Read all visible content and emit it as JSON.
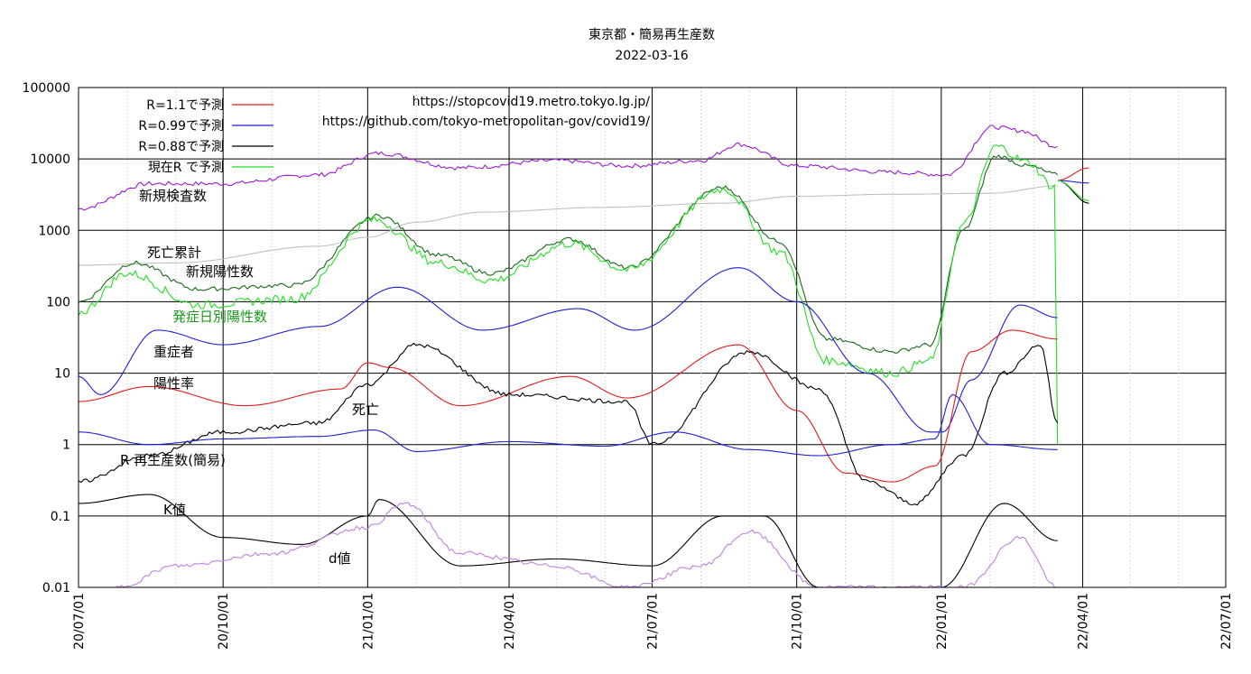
{
  "chart_data": {
    "type": "line",
    "title": "東京都・簡易再生産数",
    "subtitle": "2022-03-16",
    "y_scale": "log",
    "ylim": [
      0.01,
      100000
    ],
    "y_ticks": [
      "100000",
      "10000",
      "1000",
      "100",
      "10",
      "1",
      "0.1",
      "0.01"
    ],
    "x_ticks": [
      "20/07/01",
      "20/10/01",
      "21/01/01",
      "21/04/01",
      "21/07/01",
      "21/10/01",
      "22/01/01",
      "22/04/01",
      "22/07/01"
    ],
    "source_urls": [
      "https://stopcovid19.metro.tokyo.lg.jp/",
      "https://github.com/tokyo-metropolitan-gov/covid19/"
    ],
    "legend": [
      {
        "label": "R=1.1で予測",
        "color": "#e41a1c"
      },
      {
        "label": "R=0.99で予測",
        "color": "#1f1fd6"
      },
      {
        "label": "R=0.88で予測",
        "color": "#000000"
      },
      {
        "label": "現在R で予測",
        "color": "#22e022"
      }
    ],
    "annotations": [
      {
        "text": "新規検査数",
        "color": "#000000"
      },
      {
        "text": "死亡累計",
        "color": "#000000"
      },
      {
        "text": "新規陽性数",
        "color": "#000000"
      },
      {
        "text": "発症日別陽性数",
        "color": "#1a9a1a"
      },
      {
        "text": "重症者",
        "color": "#000000"
      },
      {
        "text": "陽性率",
        "color": "#000000"
      },
      {
        "text": "死亡",
        "color": "#000000"
      },
      {
        "text": "R 再生産数(簡易)",
        "color": "#000000"
      },
      {
        "text": "K値",
        "color": "#000000"
      },
      {
        "text": "d値",
        "color": "#000000"
      }
    ],
    "series": [
      {
        "name": "新規検査数",
        "color": "#9a1ad0",
        "x": [
          "20/07/01",
          "20/08/15",
          "20/10/01",
          "20/12/01",
          "21/01/08",
          "21/03/01",
          "21/05/01",
          "21/06/15",
          "21/08/01",
          "21/08/25",
          "21/10/01",
          "21/12/01",
          "22/01/05",
          "22/02/03",
          "22/02/20",
          "22/03/16"
        ],
        "y": [
          2000,
          4500,
          4500,
          6000,
          12000,
          7500,
          9500,
          8000,
          9500,
          16000,
          8000,
          6500,
          6000,
          28000,
          25000,
          15000
        ]
      },
      {
        "name": "死亡累計",
        "color": "#c0c0c0",
        "x": [
          "20/07/01",
          "20/09/01",
          "20/12/01",
          "21/01/01",
          "21/02/01",
          "21/03/15",
          "21/06/01",
          "21/08/15",
          "21/10/01",
          "21/12/01",
          "22/02/01",
          "22/03/16"
        ],
        "y": [
          325,
          350,
          600,
          800,
          1300,
          1800,
          2100,
          2400,
          3000,
          3200,
          3300,
          4200
        ]
      },
      {
        "name": "新規陽性数",
        "color": "#1a6a1a",
        "x": [
          "20/07/01",
          "20/08/05",
          "20/09/15",
          "20/11/15",
          "21/01/08",
          "21/02/15",
          "21/03/20",
          "21/05/10",
          "21/06/15",
          "21/08/15",
          "21/09/20",
          "21/10/20",
          "21/12/01",
          "21/12/25",
          "22/01/15",
          "22/02/05",
          "22/02/25",
          "22/03/16"
        ],
        "y": [
          100,
          350,
          150,
          170,
          1600,
          450,
          250,
          750,
          300,
          4000,
          700,
          30,
          20,
          25,
          1000,
          11000,
          8000,
          6000
        ]
      },
      {
        "name": "発症日別陽性数",
        "color": "#22e022",
        "x": [
          "20/07/01",
          "20/08/01",
          "20/09/15",
          "20/11/15",
          "21/01/05",
          "21/02/15",
          "21/03/20",
          "21/05/10",
          "21/06/15",
          "21/08/15",
          "21/09/20",
          "21/10/20",
          "21/12/01",
          "21/12/25",
          "22/01/15",
          "22/02/05",
          "22/02/25",
          "22/03/14",
          "22/03/16"
        ],
        "y": [
          70,
          250,
          90,
          110,
          1400,
          350,
          200,
          650,
          280,
          3800,
          500,
          15,
          10,
          15,
          1200,
          15000,
          9000,
          4000,
          1
        ]
      },
      {
        "name": "重症者",
        "color": "#1f1fd6",
        "x": [
          "20/07/01",
          "20/07/15",
          "20/08/20",
          "20/10/01",
          "20/12/01",
          "21/01/20",
          "21/03/15",
          "21/05/15",
          "21/06/20",
          "21/08/25",
          "21/10/01",
          "21/11/15",
          "21/12/25",
          "22/01/02",
          "22/01/20",
          "22/02/20",
          "22/03/16"
        ],
        "y": [
          9,
          5,
          40,
          25,
          45,
          160,
          40,
          80,
          40,
          300,
          100,
          10,
          1.5,
          1.5,
          8,
          90,
          60
        ]
      },
      {
        "name": "陽性率",
        "color": "#e41a1c",
        "x": [
          "20/07/01",
          "20/08/15",
          "20/10/15",
          "20/12/15",
          "21/01/01",
          "21/01/15",
          "21/03/01",
          "21/05/10",
          "21/06/15",
          "21/08/25",
          "21/10/01",
          "21/11/01",
          "21/12/01",
          "21/12/28",
          "22/01/20",
          "22/02/15",
          "22/03/16"
        ],
        "y": [
          4,
          6.5,
          3.5,
          6,
          14,
          12,
          3.5,
          9,
          4.5,
          25,
          3,
          0.4,
          0.3,
          0.5,
          20,
          40,
          30
        ]
      },
      {
        "name": "死亡",
        "color": "#000000",
        "x": [
          "20/07/01",
          "20/08/15",
          "20/10/01",
          "20/12/01",
          "21/01/01",
          "21/02/01",
          "21/04/01",
          "21/06/15",
          "21/07/01",
          "21/09/01",
          "21/10/15",
          "21/11/15",
          "21/12/15",
          "22/01/15",
          "22/02/10",
          "22/03/05",
          "22/03/16"
        ],
        "y": [
          0.3,
          0.7,
          1.5,
          2,
          7,
          25,
          5,
          4,
          1,
          20,
          6,
          0.3,
          0.15,
          0.7,
          10,
          25,
          2
        ]
      },
      {
        "name": "R 再生産数(簡易)",
        "color": "#1f1fd6",
        "x": [
          "20/07/01",
          "20/08/15",
          "20/10/01",
          "20/12/01",
          "21/01/05",
          "21/02/01",
          "21/04/01",
          "21/06/01",
          "21/07/15",
          "21/09/01",
          "21/10/15",
          "21/12/01",
          "21/12/28",
          "22/01/08",
          "22/02/01",
          "22/03/16"
        ],
        "y": [
          1.5,
          1.0,
          1.2,
          1.3,
          1.6,
          0.8,
          1.1,
          0.95,
          1.5,
          0.85,
          0.7,
          1.0,
          1.2,
          5,
          1.0,
          0.85
        ]
      },
      {
        "name": "K値",
        "color": "#000000",
        "x": [
          "20/07/01",
          "20/08/15",
          "20/10/01",
          "20/11/20",
          "21/01/01",
          "21/01/08",
          "21/03/01",
          "21/05/01",
          "21/07/01",
          "21/08/15",
          "21/09/10",
          "21/10/15",
          "22/01/01",
          "22/02/10",
          "22/03/16"
        ],
        "y": [
          0.15,
          0.2,
          0.05,
          0.04,
          0.1,
          0.17,
          0.02,
          0.025,
          0.02,
          0.1,
          0.1,
          0.01,
          0.01,
          0.15,
          0.045
        ]
      },
      {
        "name": "d値",
        "color": "#c080e0",
        "x": [
          "20/07/25",
          "20/09/01",
          "20/11/01",
          "21/01/01",
          "21/01/25",
          "21/03/01",
          "21/05/01",
          "21/06/15",
          "21/08/01",
          "21/09/01",
          "21/10/15",
          "22/01/15",
          "22/02/20",
          "22/03/16"
        ],
        "y": [
          0.01,
          0.02,
          0.03,
          0.07,
          0.15,
          0.03,
          0.02,
          0.01,
          0.02,
          0.06,
          0.01,
          0.01,
          0.05,
          0.01
        ]
      },
      {
        "name": "R=1.1で予測",
        "color": "#e41a1c",
        "x": [
          "22/03/16",
          "22/04/05"
        ],
        "y": [
          5000,
          7500
        ]
      },
      {
        "name": "R=0.99で予測",
        "color": "#1f1fd6",
        "x": [
          "22/03/16",
          "22/04/05"
        ],
        "y": [
          5000,
          4600
        ]
      },
      {
        "name": "R=0.88で予測",
        "color": "#000000",
        "x": [
          "22/03/16",
          "22/04/05"
        ],
        "y": [
          5000,
          2400
        ]
      },
      {
        "name": "現在R で予測",
        "color": "#22e022",
        "x": [
          "22/03/16",
          "22/04/05"
        ],
        "y": [
          5000,
          2600
        ]
      }
    ]
  }
}
